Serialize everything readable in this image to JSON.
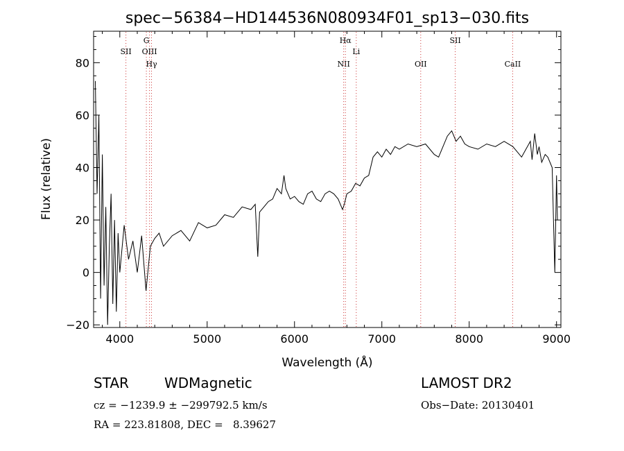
{
  "chart_data": {
    "type": "line",
    "title": "spec−56384−HD144536N080934F01_sp13−030.fits",
    "xlabel": "Wavelength (Å)",
    "ylabel": "Flux (relative)",
    "xlim": [
      3700,
      9050
    ],
    "ylim": [
      -21,
      92
    ],
    "xticks": [
      4000,
      5000,
      6000,
      7000,
      8000,
      9000
    ],
    "yticks": [
      -20,
      0,
      20,
      40,
      60,
      80
    ],
    "line_color": "#000000",
    "marker_color": "#cc3333",
    "series": [
      {
        "x": [
          3720,
          3740,
          3760,
          3780,
          3800,
          3820,
          3840,
          3860,
          3880,
          3900,
          3920,
          3940,
          3960,
          3980,
          4000,
          4050,
          4100,
          4150,
          4200,
          4250,
          4300,
          4350,
          4400,
          4450,
          4500,
          4600,
          4700,
          4800,
          4900,
          5000,
          5100,
          5200,
          5300,
          5400,
          5500,
          5550,
          5580,
          5600,
          5650,
          5700,
          5750,
          5800,
          5850,
          5880,
          5900,
          5950,
          6000,
          6050,
          6100,
          6150,
          6200,
          6250,
          6300,
          6350,
          6400,
          6450,
          6500,
          6550,
          6570,
          6600,
          6650,
          6700,
          6750,
          6800,
          6850,
          6900,
          6950,
          7000,
          7050,
          7100,
          7150,
          7200,
          7300,
          7400,
          7500,
          7600,
          7650,
          7700,
          7750,
          7800,
          7850,
          7900,
          7950,
          8000,
          8100,
          8200,
          8300,
          8400,
          8500,
          8550,
          8600,
          8650,
          8700,
          8720,
          8750,
          8780,
          8800,
          8830,
          8870,
          8900,
          8950,
          8980,
          9000,
          9010
        ],
        "y": [
          73,
          30,
          60,
          -10,
          45,
          -5,
          25,
          -20,
          10,
          30,
          -12,
          20,
          -15,
          15,
          0,
          18,
          5,
          12,
          0,
          14,
          -7,
          10,
          13,
          15,
          10,
          14,
          16,
          12,
          19,
          17,
          18,
          22,
          21,
          25,
          24,
          26,
          6,
          23,
          25,
          27,
          28,
          32,
          30,
          37,
          32,
          28,
          29,
          27,
          26,
          30,
          31,
          28,
          27,
          30,
          31,
          30,
          28,
          24,
          26,
          30,
          31,
          34,
          33,
          36,
          37,
          44,
          46,
          44,
          47,
          45,
          48,
          47,
          49,
          48,
          49,
          45,
          44,
          48,
          52,
          54,
          50,
          52,
          49,
          48,
          47,
          49,
          48,
          50,
          48,
          46,
          44,
          47,
          50,
          43,
          53,
          45,
          48,
          42,
          45,
          44,
          40,
          0,
          37,
          20
        ]
      }
    ],
    "line_markers": [
      {
        "label": "SII",
        "x": 4070
      },
      {
        "label": "G",
        "x": 4304
      },
      {
        "label": "OIII",
        "x": 4340
      },
      {
        "label": "Hγ",
        "x": 4363
      },
      {
        "label": "NII",
        "x": 6563
      },
      {
        "label": "Hα",
        "x": 6583
      },
      {
        "label": "Li",
        "x": 6707
      },
      {
        "label": "OII",
        "x": 7445
      },
      {
        "label": "SII",
        "x": 7840
      },
      {
        "label": "CaII",
        "x": 8498
      }
    ]
  },
  "info": {
    "object_type": "STAR",
    "subclass": "WDMagnetic",
    "survey": "LAMOST DR2",
    "cz": "cz = −1239.9 ± −299792.5 km/s",
    "obs_date": "Obs−Date: 20130401",
    "radec": "RA = 223.81808, DEC =   8.39627"
  }
}
